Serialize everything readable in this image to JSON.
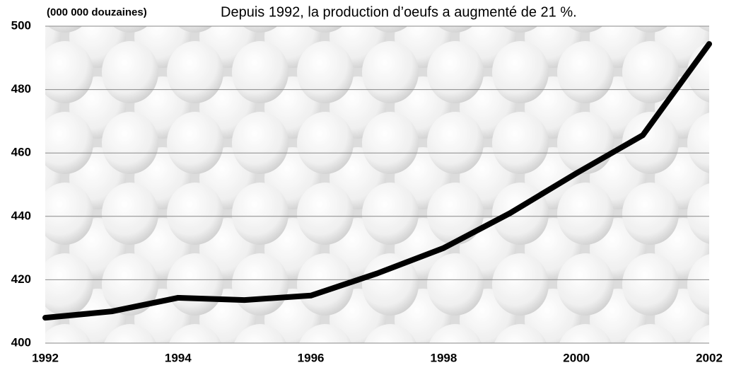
{
  "chart_data": {
    "type": "line",
    "title": "Depuis 1992, la production d’oeufs a augmenté de 21 %.",
    "y_axis_label": "(000 000 douzaines)",
    "x": [
      1992,
      1993,
      1994,
      1995,
      1996,
      1997,
      1998,
      1999,
      2000,
      2001,
      2002
    ],
    "series": [
      {
        "color": "#000000",
        "values": [
          408,
          410,
          414.3,
          413.6,
          415,
          422,
          430,
          441,
          453.6,
          465.6,
          494.4
        ]
      }
    ],
    "xlim": [
      1992,
      2002
    ],
    "xticks": [
      1992,
      1994,
      1996,
      1998,
      2000,
      2002
    ],
    "ylim": [
      400,
      500
    ],
    "yticks": [
      400,
      420,
      440,
      460,
      480,
      500
    ],
    "grid": true
  }
}
